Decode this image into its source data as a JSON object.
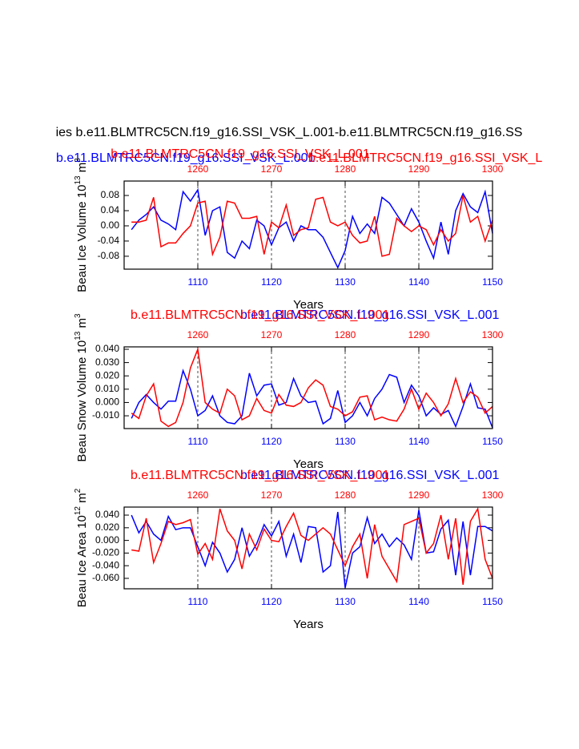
{
  "suptitle": "ies b.e11.BLMTRC5CN.f19_g16.SSI_VSK_L.001-b.e11.BLMTRC5CN.f19_g16.SS",
  "chart_data": [
    {
      "type": "line",
      "ylabel": {
        "text": "Beau Ice Volume 10",
        "exp": "13",
        "unit": " m",
        "unit_exp": "3"
      },
      "xlabel": "Years",
      "annotation": "b.e11.BLMTRC5CN.f19_g16.SSI_VSK_L",
      "xlim": [
        1100,
        1150
      ],
      "xticks": [
        1110,
        1120,
        1130,
        1140,
        1150
      ],
      "x2lim": [
        1250,
        1300
      ],
      "x2ticks": [
        1260,
        1270,
        1280,
        1290,
        1300
      ],
      "ylim": [
        -0.114,
        0.118
      ],
      "yticks": [
        0.08,
        0.04,
        {
          "value": 0,
          "label": "0.00"
        },
        -0.04,
        -0.08
      ],
      "grid": "x",
      "series": [
        {
          "name": "b.e11.BLMTRC5CN.f19_g16.SSI_VSK_L.001",
          "color": "#0000ff",
          "axis": "x",
          "x": [
            1101,
            1102,
            1103,
            1104,
            1105,
            1106,
            1107,
            1108,
            1109,
            1110,
            1111,
            1112,
            1113,
            1114,
            1115,
            1116,
            1117,
            1118,
            1119,
            1120,
            1121,
            1122,
            1123,
            1124,
            1125,
            1126,
            1127,
            1128,
            1129,
            1130,
            1131,
            1132,
            1133,
            1134,
            1135,
            1136,
            1137,
            1138,
            1139,
            1140,
            1141,
            1142,
            1143,
            1144,
            1145,
            1146,
            1147,
            1148,
            1149,
            1150
          ],
          "values": [
            -0.01,
            0.015,
            0.03,
            0.05,
            0.015,
            0.005,
            -0.01,
            0.09,
            0.065,
            0.095,
            -0.025,
            0.04,
            0.05,
            -0.07,
            -0.085,
            -0.04,
            -0.06,
            0.015,
            0.0,
            -0.05,
            -0.005,
            0.01,
            -0.04,
            0.0,
            -0.01,
            -0.01,
            -0.03,
            -0.07,
            -0.11,
            -0.065,
            0.025,
            -0.02,
            0.005,
            -0.02,
            0.075,
            0.06,
            0.03,
            0.0,
            0.045,
            0.01,
            -0.04,
            -0.085,
            0.01,
            -0.075,
            0.04,
            0.085,
            0.05,
            0.035,
            0.09,
            -0.02
          ]
        },
        {
          "name": "b.e11.BLMTRC5CN.f19_g16.SSI_VSK_L.001",
          "color": "#ff0000",
          "axis": "x2",
          "x": [
            1251,
            1252,
            1253,
            1254,
            1255,
            1256,
            1257,
            1258,
            1259,
            1260,
            1261,
            1262,
            1263,
            1264,
            1265,
            1266,
            1267,
            1268,
            1269,
            1270,
            1271,
            1272,
            1273,
            1274,
            1275,
            1276,
            1277,
            1278,
            1279,
            1280,
            1281,
            1282,
            1283,
            1284,
            1285,
            1286,
            1287,
            1288,
            1289,
            1290,
            1291,
            1292,
            1293,
            1294,
            1295,
            1296,
            1297,
            1298,
            1299,
            1300
          ],
          "values": [
            0.01,
            0.01,
            0.015,
            0.075,
            -0.055,
            -0.045,
            -0.045,
            -0.02,
            0.0,
            0.06,
            0.065,
            -0.075,
            -0.03,
            0.065,
            0.06,
            0.02,
            0.02,
            0.025,
            -0.075,
            0.01,
            -0.005,
            0.055,
            -0.025,
            -0.01,
            -0.005,
            0.07,
            0.075,
            0.01,
            0.0,
            0.01,
            -0.025,
            -0.045,
            -0.04,
            0.025,
            -0.08,
            -0.075,
            0.02,
            0.0,
            -0.015,
            0.0,
            -0.01,
            -0.05,
            -0.01,
            -0.04,
            -0.02,
            0.08,
            0.01,
            0.025,
            -0.04,
            0.015
          ]
        }
      ]
    },
    {
      "type": "line",
      "ylabel": {
        "text": "Beau Snow Volume 10",
        "exp": "13",
        "unit": " m",
        "unit_exp": "3"
      },
      "xlabel": "Years",
      "xlim": [
        1100,
        1150
      ],
      "xticks": [
        1110,
        1120,
        1130,
        1140,
        1150
      ],
      "x2lim": [
        1250,
        1300
      ],
      "x2ticks": [
        1260,
        1270,
        1280,
        1290,
        1300
      ],
      "ylim": [
        -0.0196,
        0.0418
      ],
      "yticks": [
        {
          "value": 0.04,
          "label": "0.040"
        },
        {
          "value": 0.03,
          "label": "0.030"
        },
        {
          "value": 0.02,
          "label": "0.020"
        },
        {
          "value": 0.01,
          "label": "0.010"
        },
        {
          "value": 0,
          "label": "0.000"
        },
        {
          "value": -0.01,
          "label": "-0.010"
        }
      ],
      "grid": "x",
      "series": [
        {
          "name": "b.e11.BLMTRC5CN.f19_g16.SSI_VSK_L.001",
          "color": "#0000ff",
          "axis": "x",
          "x": [
            1101,
            1102,
            1103,
            1104,
            1105,
            1106,
            1107,
            1108,
            1109,
            1110,
            1111,
            1112,
            1113,
            1114,
            1115,
            1116,
            1117,
            1118,
            1119,
            1120,
            1121,
            1122,
            1123,
            1124,
            1125,
            1126,
            1127,
            1128,
            1129,
            1130,
            1131,
            1132,
            1133,
            1134,
            1135,
            1136,
            1137,
            1138,
            1139,
            1140,
            1141,
            1142,
            1143,
            1144,
            1145,
            1146,
            1147,
            1148,
            1149,
            1150
          ],
          "values": [
            -0.012,
            0.0,
            0.006,
            0.0,
            -0.005,
            0.001,
            0.001,
            0.024,
            0.01,
            -0.01,
            -0.006,
            0.005,
            -0.01,
            -0.015,
            -0.016,
            -0.01,
            0.022,
            0.005,
            0.013,
            0.014,
            -0.002,
            0.0,
            0.018,
            0.005,
            0.0,
            0.001,
            -0.016,
            -0.012,
            0.009,
            -0.015,
            -0.01,
            0.0,
            -0.01,
            0.003,
            0.01,
            0.021,
            0.019,
            0.0,
            0.013,
            0.005,
            -0.01,
            -0.004,
            -0.009,
            -0.006,
            -0.018,
            -0.003,
            0.014,
            -0.004,
            -0.005,
            -0.019
          ]
        },
        {
          "name": "b.e11.BLMTRC5CN.f19_g16.SSI_VSK_L.001",
          "color": "#ff0000",
          "axis": "x2",
          "x": [
            1251,
            1252,
            1253,
            1254,
            1255,
            1256,
            1257,
            1258,
            1259,
            1260,
            1261,
            1262,
            1263,
            1264,
            1265,
            1266,
            1267,
            1268,
            1269,
            1270,
            1271,
            1272,
            1273,
            1274,
            1275,
            1276,
            1277,
            1278,
            1279,
            1280,
            1281,
            1282,
            1283,
            1284,
            1285,
            1286,
            1287,
            1288,
            1289,
            1290,
            1291,
            1292,
            1293,
            1294,
            1295,
            1296,
            1297,
            1298,
            1299,
            1300
          ],
          "values": [
            -0.008,
            -0.012,
            0.005,
            0.014,
            -0.014,
            -0.018,
            -0.015,
            0.0,
            0.026,
            0.04,
            0.0,
            -0.005,
            -0.008,
            0.01,
            0.005,
            -0.013,
            -0.01,
            0.003,
            -0.006,
            -0.008,
            0.006,
            -0.002,
            -0.003,
            0.0,
            0.011,
            0.017,
            0.013,
            -0.003,
            -0.005,
            -0.01,
            -0.007,
            0.004,
            0.005,
            -0.013,
            -0.011,
            -0.013,
            -0.014,
            -0.005,
            0.01,
            -0.005,
            0.007,
            0.0,
            -0.01,
            -0.001,
            0.018,
            0.0,
            0.008,
            0.004,
            -0.008,
            -0.003
          ]
        }
      ]
    },
    {
      "type": "line",
      "ylabel": {
        "text": "Beau Ice Area 10",
        "exp": "12",
        "unit": " m",
        "unit_exp": "2"
      },
      "xlabel": "Years",
      "xlim": [
        1100,
        1150
      ],
      "xticks": [
        1110,
        1120,
        1130,
        1140,
        1150
      ],
      "x2lim": [
        1250,
        1300
      ],
      "x2ticks": [
        1260,
        1270,
        1280,
        1290,
        1300
      ],
      "ylim": [
        -0.0765,
        0.0527
      ],
      "yticks": [
        {
          "value": 0.04,
          "label": "0.040"
        },
        {
          "value": 0.02,
          "label": "0.020"
        },
        {
          "value": 0,
          "label": "0.000"
        },
        {
          "value": -0.02,
          "label": "-0.020"
        },
        {
          "value": -0.04,
          "label": "-0.040"
        },
        {
          "value": -0.06,
          "label": "-0.060"
        }
      ],
      "grid": "x",
      "series": [
        {
          "name": "b.e11.BLMTRC5CN.f19_g16.SSI_VSK_L.001",
          "color": "#0000ff",
          "axis": "x",
          "x": [
            1101,
            1102,
            1103,
            1104,
            1105,
            1106,
            1107,
            1108,
            1109,
            1110,
            1111,
            1112,
            1113,
            1114,
            1115,
            1116,
            1117,
            1118,
            1119,
            1120,
            1121,
            1122,
            1123,
            1124,
            1125,
            1126,
            1127,
            1128,
            1129,
            1130,
            1131,
            1132,
            1133,
            1134,
            1135,
            1136,
            1137,
            1138,
            1139,
            1140,
            1141,
            1142,
            1143,
            1144,
            1145,
            1146,
            1147,
            1148,
            1149,
            1150
          ],
          "values": [
            0.04,
            0.012,
            0.03,
            0.01,
            0.0,
            0.038,
            0.017,
            0.02,
            0.02,
            -0.01,
            -0.04,
            -0.003,
            -0.02,
            -0.05,
            -0.03,
            0.02,
            -0.025,
            -0.005,
            0.025,
            0.007,
            0.03,
            -0.025,
            0.01,
            -0.035,
            0.022,
            0.02,
            -0.05,
            -0.04,
            0.045,
            -0.075,
            -0.02,
            -0.01,
            0.036,
            -0.005,
            0.01,
            -0.01,
            0.004,
            -0.007,
            -0.03,
            0.048,
            -0.02,
            -0.018,
            0.018,
            0.032,
            -0.055,
            0.03,
            -0.055,
            0.022,
            0.022,
            0.015
          ]
        },
        {
          "name": "b.e11.BLMTRC5CN.f19_g16.SSI_VSK_L.001",
          "color": "#ff0000",
          "axis": "x2",
          "x": [
            1251,
            1252,
            1253,
            1254,
            1255,
            1256,
            1257,
            1258,
            1259,
            1260,
            1261,
            1262,
            1263,
            1264,
            1265,
            1266,
            1267,
            1268,
            1269,
            1270,
            1271,
            1272,
            1273,
            1274,
            1275,
            1276,
            1277,
            1278,
            1279,
            1280,
            1281,
            1282,
            1283,
            1284,
            1285,
            1286,
            1287,
            1288,
            1289,
            1290,
            1291,
            1292,
            1293,
            1294,
            1295,
            1296,
            1297,
            1298,
            1299,
            1300
          ],
          "values": [
            -0.015,
            -0.017,
            0.035,
            -0.035,
            -0.005,
            0.03,
            0.025,
            0.028,
            0.033,
            -0.022,
            -0.005,
            -0.03,
            0.05,
            0.015,
            0.0,
            -0.045,
            0.01,
            -0.015,
            0.018,
            0.0,
            -0.002,
            0.022,
            0.043,
            0.008,
            0.0,
            0.01,
            0.02,
            0.01,
            -0.015,
            -0.04,
            -0.01,
            0.01,
            -0.06,
            0.025,
            -0.025,
            -0.045,
            -0.065,
            0.025,
            0.03,
            0.035,
            -0.02,
            -0.005,
            0.04,
            -0.03,
            0.035,
            -0.07,
            0.03,
            0.05,
            -0.03,
            -0.06
          ]
        }
      ]
    }
  ]
}
